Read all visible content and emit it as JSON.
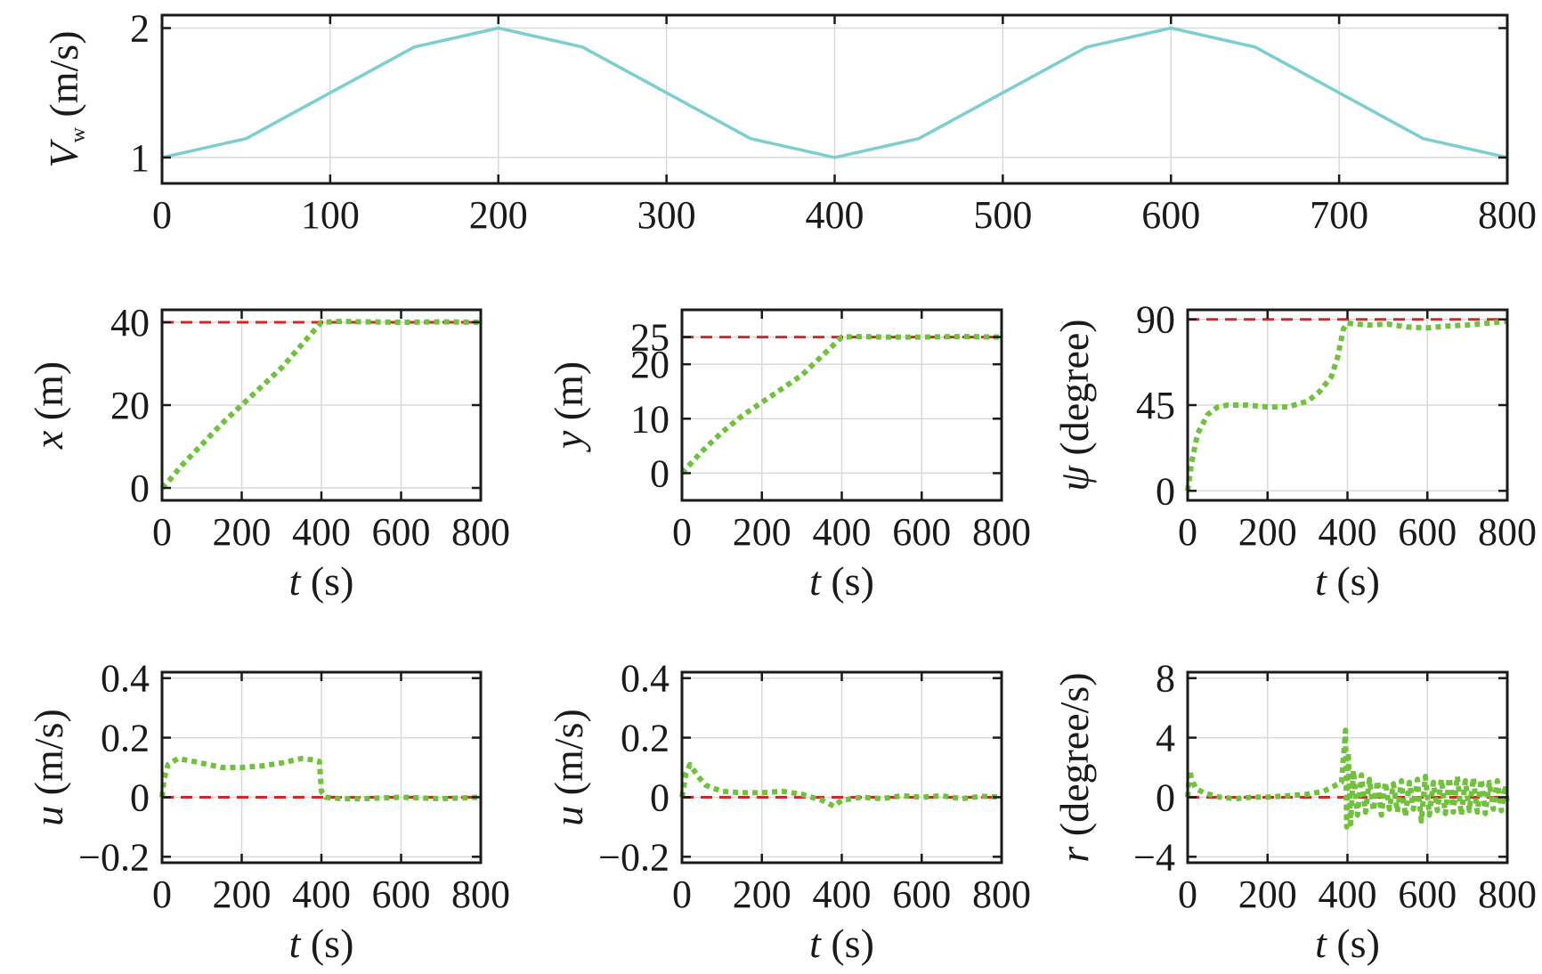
{
  "colors": {
    "wind": "#7ccfd0",
    "response": "#6fc23a",
    "reference": "#d62728",
    "grid": "#d9d9d9",
    "axis": "#1a1a1a"
  },
  "chart_data": [
    {
      "type": "line",
      "xlabel": "",
      "ylabel": {
        "sym": "V",
        "sub": "w",
        "unit": " (m/s)"
      },
      "xlim": [
        0,
        800
      ],
      "ylim": [
        0.8,
        2.1
      ],
      "xticks": [
        "0",
        "100",
        "200",
        "300",
        "400",
        "500",
        "600",
        "700",
        "800"
      ],
      "yticks": [
        "1",
        "2"
      ],
      "grid": true,
      "series": [
        {
          "style": "solid",
          "color": "wind",
          "x": [
            0,
            50,
            100,
            150,
            200,
            250,
            300,
            350,
            400,
            450,
            500,
            550,
            600,
            650,
            700,
            750,
            800
          ],
          "y": [
            1.0,
            1.146,
            1.5,
            1.854,
            2.0,
            1.854,
            1.5,
            1.146,
            1.0,
            1.146,
            1.5,
            1.854,
            2.0,
            1.854,
            1.5,
            1.146,
            1.0
          ]
        }
      ]
    },
    {
      "type": "line",
      "xlabel": {
        "sym": "t",
        "unit": " (s)"
      },
      "ylabel": {
        "sym": "x",
        "unit": " (m)"
      },
      "xlim": [
        0,
        800
      ],
      "ylim": [
        -3,
        43
      ],
      "xticks": [
        "0",
        "200",
        "400",
        "600",
        "800"
      ],
      "yticks": [
        "0",
        "20",
        "40"
      ],
      "grid": true,
      "series": [
        {
          "style": "reference",
          "color": "reference",
          "x": [
            0,
            800
          ],
          "y": [
            40,
            40
          ]
        },
        {
          "style": "dotted",
          "color": "response",
          "x": [
            0,
            20,
            50,
            100,
            150,
            200,
            250,
            300,
            350,
            400,
            450,
            500,
            600,
            700,
            800
          ],
          "y": [
            0,
            2,
            5.5,
            10.5,
            15.5,
            20,
            24.5,
            29,
            34.5,
            40,
            40.2,
            40.1,
            40,
            40.1,
            40
          ]
        }
      ]
    },
    {
      "type": "line",
      "xlabel": {
        "sym": "t",
        "unit": " (s)"
      },
      "ylabel": {
        "sym": "y",
        "unit": " (m)"
      },
      "xlim": [
        0,
        800
      ],
      "ylim": [
        -5,
        30
      ],
      "xticks": [
        "0",
        "200",
        "400",
        "600",
        "800"
      ],
      "yticks": [
        "0",
        "10",
        "20",
        "25"
      ],
      "grid": true,
      "series": [
        {
          "style": "reference",
          "color": "reference",
          "x": [
            0,
            800
          ],
          "y": [
            25,
            25
          ]
        },
        {
          "style": "dotted",
          "color": "response",
          "x": [
            0,
            25,
            50,
            100,
            150,
            200,
            250,
            300,
            350,
            400,
            450,
            500,
            600,
            700,
            800
          ],
          "y": [
            0,
            2,
            4,
            7.5,
            10.5,
            13,
            15.5,
            18,
            21.5,
            25,
            25.1,
            25,
            25,
            25.1,
            25
          ]
        }
      ]
    },
    {
      "type": "line",
      "xlabel": {
        "sym": "t",
        "unit": " (s)"
      },
      "ylabel": {
        "sym": "ψ",
        "unit": " (degree)"
      },
      "xlim": [
        0,
        800
      ],
      "ylim": [
        -5,
        95
      ],
      "xticks": [
        "0",
        "200",
        "400",
        "600",
        "800"
      ],
      "yticks": [
        "0",
        "45",
        "90"
      ],
      "grid": true,
      "series": [
        {
          "style": "reference",
          "color": "reference",
          "x": [
            0,
            800
          ],
          "y": [
            90,
            90
          ]
        },
        {
          "style": "dotted",
          "color": "response",
          "x": [
            0,
            10,
            25,
            50,
            75,
            100,
            150,
            200,
            250,
            300,
            330,
            360,
            375,
            390,
            400,
            450,
            500,
            550,
            600,
            650,
            700,
            750,
            800
          ],
          "y": [
            0,
            15,
            30,
            40,
            44,
            45,
            45,
            44,
            44,
            47,
            52,
            60,
            70,
            85,
            88,
            87,
            87.5,
            86,
            85.5,
            86.5,
            87,
            88,
            89
          ]
        }
      ]
    },
    {
      "type": "line",
      "xlabel": {
        "sym": "t",
        "unit": " (s)"
      },
      "ylabel": {
        "sym": "u",
        "unit": " (m/s)"
      },
      "xlim": [
        0,
        800
      ],
      "ylim": [
        -0.22,
        0.42
      ],
      "xticks": [
        "0",
        "200",
        "400",
        "600",
        "800"
      ],
      "yticks": [
        "−0.2",
        "0",
        "0.2",
        "0.4"
      ],
      "grid": true,
      "series": [
        {
          "style": "reference",
          "color": "reference",
          "x": [
            0,
            800
          ],
          "y": [
            0,
            0
          ]
        },
        {
          "style": "dotted",
          "color": "response",
          "x": [
            0,
            5,
            15,
            40,
            80,
            150,
            200,
            250,
            300,
            350,
            380,
            395,
            400,
            410,
            450,
            500,
            600,
            700,
            800
          ],
          "y": [
            0,
            0.06,
            0.11,
            0.13,
            0.12,
            0.1,
            0.1,
            0.105,
            0.115,
            0.13,
            0.125,
            0.12,
            0.02,
            0.0,
            -0.005,
            -0.005,
            0.0,
            -0.005,
            0.0
          ]
        }
      ]
    },
    {
      "type": "line",
      "xlabel": {
        "sym": "t",
        "unit": " (s)"
      },
      "ylabel": {
        "sym": "u",
        "unit": " (m/s)"
      },
      "xlim": [
        0,
        800
      ],
      "ylim": [
        -0.22,
        0.42
      ],
      "xticks": [
        "0",
        "200",
        "400",
        "600",
        "800"
      ],
      "yticks": [
        "−0.2",
        "0",
        "0.2",
        "0.4"
      ],
      "grid": true,
      "series": [
        {
          "style": "reference",
          "color": "reference",
          "x": [
            0,
            800
          ],
          "y": [
            0,
            0
          ]
        },
        {
          "style": "dotted",
          "color": "response",
          "x": [
            0,
            10,
            20,
            40,
            60,
            100,
            150,
            200,
            250,
            300,
            350,
            380,
            400,
            450,
            500,
            550,
            600,
            650,
            700,
            750,
            800
          ],
          "y": [
            0,
            0.08,
            0.11,
            0.07,
            0.04,
            0.02,
            0.015,
            0.015,
            0.02,
            0.01,
            -0.01,
            -0.03,
            -0.01,
            0.0,
            -0.005,
            0.005,
            0.0,
            0.005,
            -0.005,
            0.003,
            0.0
          ]
        }
      ]
    },
    {
      "type": "line",
      "xlabel": {
        "sym": "t",
        "unit": " (s)"
      },
      "ylabel": {
        "sym": "r",
        "unit": " (degree/s)"
      },
      "xlim": [
        0,
        800
      ],
      "ylim": [
        -4.4,
        8.4
      ],
      "xticks": [
        "0",
        "200",
        "400",
        "600",
        "800"
      ],
      "yticks": [
        "−4",
        "0",
        "4",
        "8"
      ],
      "grid": true,
      "series": [
        {
          "style": "reference",
          "color": "reference",
          "x": [
            0,
            800
          ],
          "y": [
            0,
            0
          ]
        },
        {
          "style": "dotted",
          "color": "response",
          "x": [
            0,
            5,
            10,
            20,
            40,
            80,
            120,
            160,
            200,
            250,
            300,
            340,
            370,
            385,
            395,
            398,
            402,
            408,
            415,
            425,
            435,
            445,
            455,
            465,
            475,
            485,
            495,
            505,
            515,
            525,
            535,
            545,
            555,
            565,
            575,
            585,
            595,
            605,
            615,
            625,
            635,
            645,
            655,
            665,
            675,
            685,
            695,
            705,
            715,
            725,
            735,
            745,
            755,
            765,
            775,
            785,
            795,
            800
          ],
          "y": [
            0,
            1.8,
            1.2,
            0.6,
            0.3,
            0.0,
            -0.1,
            0.0,
            0.0,
            0.1,
            0.2,
            0.4,
            0.8,
            1.0,
            4.5,
            -2.0,
            3.0,
            -1.8,
            1.8,
            -1.2,
            1.5,
            -1.0,
            1.2,
            -0.9,
            1.1,
            -1.2,
            1.0,
            -0.8,
            0.9,
            -1.0,
            1.1,
            -1.3,
            1.0,
            -0.8,
            1.2,
            -1.6,
            1.4,
            -1.2,
            1.0,
            -0.9,
            1.2,
            -1.1,
            1.3,
            -1.0,
            1.4,
            -1.2,
            1.1,
            -0.9,
            1.3,
            -1.0,
            1.2,
            -1.1,
            1.0,
            -0.8,
            1.1,
            -0.9,
            0.8,
            -0.5
          ]
        }
      ]
    }
  ]
}
